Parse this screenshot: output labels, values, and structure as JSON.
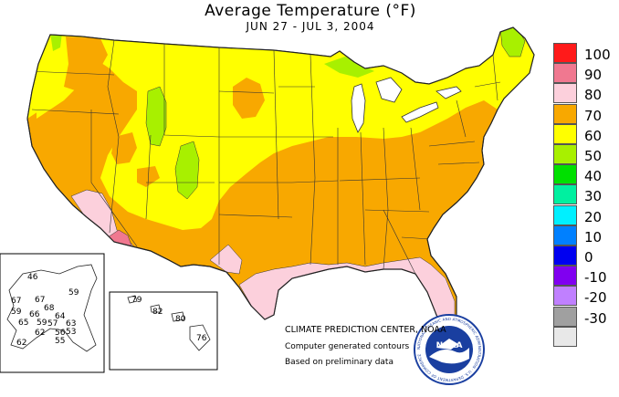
{
  "title": "Average Temperature (°F)",
  "subtitle": "JUN 27 - JUL  3, 2004",
  "legend": [
    {
      "label": "100",
      "color": "#ff1a1a"
    },
    {
      "label": "90",
      "color": "#f07890"
    },
    {
      "label": "80",
      "color": "#fcd0dc"
    },
    {
      "label": "70",
      "color": "#f8a800"
    },
    {
      "label": "60",
      "color": "#ffff00"
    },
    {
      "label": "50",
      "color": "#a8f000"
    },
    {
      "label": "40",
      "color": "#00e000"
    },
    {
      "label": "30",
      "color": "#00f0a0"
    },
    {
      "label": "20",
      "color": "#00f0ff"
    },
    {
      "label": "10",
      "color": "#0080ff"
    },
    {
      "label": "0",
      "color": "#0000f0"
    },
    {
      "label": "-10",
      "color": "#8000f0"
    },
    {
      "label": "-20",
      "color": "#c080ff"
    },
    {
      "label": "-30",
      "color": "#a0a0a0"
    },
    {
      "label": "",
      "color": "#e8e8e8"
    }
  ],
  "alaska_values": [
    "46",
    "59",
    "67",
    "67",
    "68",
    "59",
    "66",
    "64",
    "65",
    "59",
    "57",
    "63",
    "62",
    "56",
    "53",
    "62",
    "55"
  ],
  "hawaii_values": [
    "79",
    "82",
    "80",
    "76"
  ],
  "credits": {
    "line1": "CLIMATE PREDICTION CENTER, NOAA",
    "line2": "Computer generated contours",
    "line3": "Based on preliminary data"
  },
  "logo": {
    "text": "NOAA",
    "ring_text": "NATIONAL OCEANIC AND ATMOSPHERIC ADMINISTRATION · U.S. DEPARTMENT OF COMMERCE"
  },
  "colors": {
    "warm_70": "#f8a800",
    "mild_60": "#ffff00",
    "cool_50": "#a8f000",
    "hot_80": "#fcd0dc",
    "hot_90": "#f07890",
    "lake": "#ffffff"
  }
}
